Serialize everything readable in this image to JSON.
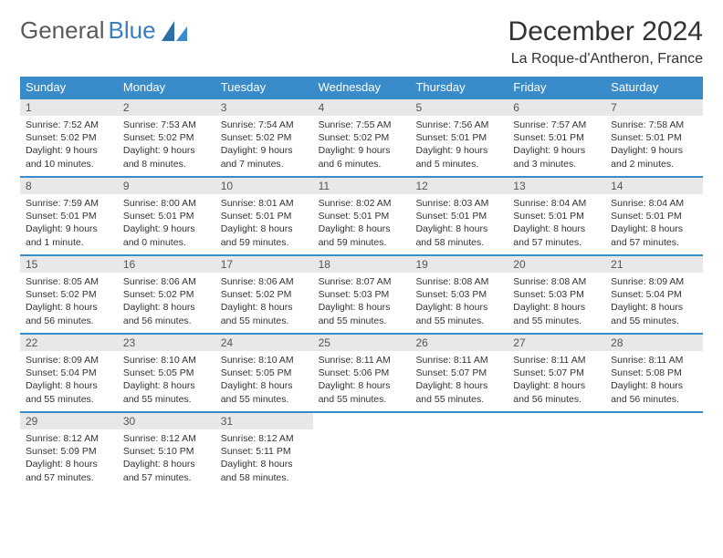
{
  "brand": {
    "part1": "General",
    "part2": "Blue"
  },
  "title": "December 2024",
  "location": "La Roque-d'Antheron, France",
  "colors": {
    "header_bg": "#3a8bc9",
    "daynum_bg": "#e8e8e8",
    "border": "#3a8bc9",
    "text": "#333333",
    "brand_gray": "#5b5b5b",
    "brand_blue": "#3a7ebf",
    "page_bg": "#ffffff"
  },
  "dayNames": [
    "Sunday",
    "Monday",
    "Tuesday",
    "Wednesday",
    "Thursday",
    "Friday",
    "Saturday"
  ],
  "weeks": [
    [
      {
        "n": "1",
        "sunrise": "Sunrise: 7:52 AM",
        "sunset": "Sunset: 5:02 PM",
        "daylight": "Daylight: 9 hours and 10 minutes."
      },
      {
        "n": "2",
        "sunrise": "Sunrise: 7:53 AM",
        "sunset": "Sunset: 5:02 PM",
        "daylight": "Daylight: 9 hours and 8 minutes."
      },
      {
        "n": "3",
        "sunrise": "Sunrise: 7:54 AM",
        "sunset": "Sunset: 5:02 PM",
        "daylight": "Daylight: 9 hours and 7 minutes."
      },
      {
        "n": "4",
        "sunrise": "Sunrise: 7:55 AM",
        "sunset": "Sunset: 5:02 PM",
        "daylight": "Daylight: 9 hours and 6 minutes."
      },
      {
        "n": "5",
        "sunrise": "Sunrise: 7:56 AM",
        "sunset": "Sunset: 5:01 PM",
        "daylight": "Daylight: 9 hours and 5 minutes."
      },
      {
        "n": "6",
        "sunrise": "Sunrise: 7:57 AM",
        "sunset": "Sunset: 5:01 PM",
        "daylight": "Daylight: 9 hours and 3 minutes."
      },
      {
        "n": "7",
        "sunrise": "Sunrise: 7:58 AM",
        "sunset": "Sunset: 5:01 PM",
        "daylight": "Daylight: 9 hours and 2 minutes."
      }
    ],
    [
      {
        "n": "8",
        "sunrise": "Sunrise: 7:59 AM",
        "sunset": "Sunset: 5:01 PM",
        "daylight": "Daylight: 9 hours and 1 minute."
      },
      {
        "n": "9",
        "sunrise": "Sunrise: 8:00 AM",
        "sunset": "Sunset: 5:01 PM",
        "daylight": "Daylight: 9 hours and 0 minutes."
      },
      {
        "n": "10",
        "sunrise": "Sunrise: 8:01 AM",
        "sunset": "Sunset: 5:01 PM",
        "daylight": "Daylight: 8 hours and 59 minutes."
      },
      {
        "n": "11",
        "sunrise": "Sunrise: 8:02 AM",
        "sunset": "Sunset: 5:01 PM",
        "daylight": "Daylight: 8 hours and 59 minutes."
      },
      {
        "n": "12",
        "sunrise": "Sunrise: 8:03 AM",
        "sunset": "Sunset: 5:01 PM",
        "daylight": "Daylight: 8 hours and 58 minutes."
      },
      {
        "n": "13",
        "sunrise": "Sunrise: 8:04 AM",
        "sunset": "Sunset: 5:01 PM",
        "daylight": "Daylight: 8 hours and 57 minutes."
      },
      {
        "n": "14",
        "sunrise": "Sunrise: 8:04 AM",
        "sunset": "Sunset: 5:01 PM",
        "daylight": "Daylight: 8 hours and 57 minutes."
      }
    ],
    [
      {
        "n": "15",
        "sunrise": "Sunrise: 8:05 AM",
        "sunset": "Sunset: 5:02 PM",
        "daylight": "Daylight: 8 hours and 56 minutes."
      },
      {
        "n": "16",
        "sunrise": "Sunrise: 8:06 AM",
        "sunset": "Sunset: 5:02 PM",
        "daylight": "Daylight: 8 hours and 56 minutes."
      },
      {
        "n": "17",
        "sunrise": "Sunrise: 8:06 AM",
        "sunset": "Sunset: 5:02 PM",
        "daylight": "Daylight: 8 hours and 55 minutes."
      },
      {
        "n": "18",
        "sunrise": "Sunrise: 8:07 AM",
        "sunset": "Sunset: 5:03 PM",
        "daylight": "Daylight: 8 hours and 55 minutes."
      },
      {
        "n": "19",
        "sunrise": "Sunrise: 8:08 AM",
        "sunset": "Sunset: 5:03 PM",
        "daylight": "Daylight: 8 hours and 55 minutes."
      },
      {
        "n": "20",
        "sunrise": "Sunrise: 8:08 AM",
        "sunset": "Sunset: 5:03 PM",
        "daylight": "Daylight: 8 hours and 55 minutes."
      },
      {
        "n": "21",
        "sunrise": "Sunrise: 8:09 AM",
        "sunset": "Sunset: 5:04 PM",
        "daylight": "Daylight: 8 hours and 55 minutes."
      }
    ],
    [
      {
        "n": "22",
        "sunrise": "Sunrise: 8:09 AM",
        "sunset": "Sunset: 5:04 PM",
        "daylight": "Daylight: 8 hours and 55 minutes."
      },
      {
        "n": "23",
        "sunrise": "Sunrise: 8:10 AM",
        "sunset": "Sunset: 5:05 PM",
        "daylight": "Daylight: 8 hours and 55 minutes."
      },
      {
        "n": "24",
        "sunrise": "Sunrise: 8:10 AM",
        "sunset": "Sunset: 5:05 PM",
        "daylight": "Daylight: 8 hours and 55 minutes."
      },
      {
        "n": "25",
        "sunrise": "Sunrise: 8:11 AM",
        "sunset": "Sunset: 5:06 PM",
        "daylight": "Daylight: 8 hours and 55 minutes."
      },
      {
        "n": "26",
        "sunrise": "Sunrise: 8:11 AM",
        "sunset": "Sunset: 5:07 PM",
        "daylight": "Daylight: 8 hours and 55 minutes."
      },
      {
        "n": "27",
        "sunrise": "Sunrise: 8:11 AM",
        "sunset": "Sunset: 5:07 PM",
        "daylight": "Daylight: 8 hours and 56 minutes."
      },
      {
        "n": "28",
        "sunrise": "Sunrise: 8:11 AM",
        "sunset": "Sunset: 5:08 PM",
        "daylight": "Daylight: 8 hours and 56 minutes."
      }
    ],
    [
      {
        "n": "29",
        "sunrise": "Sunrise: 8:12 AM",
        "sunset": "Sunset: 5:09 PM",
        "daylight": "Daylight: 8 hours and 57 minutes."
      },
      {
        "n": "30",
        "sunrise": "Sunrise: 8:12 AM",
        "sunset": "Sunset: 5:10 PM",
        "daylight": "Daylight: 8 hours and 57 minutes."
      },
      {
        "n": "31",
        "sunrise": "Sunrise: 8:12 AM",
        "sunset": "Sunset: 5:11 PM",
        "daylight": "Daylight: 8 hours and 58 minutes."
      },
      null,
      null,
      null,
      null
    ]
  ]
}
